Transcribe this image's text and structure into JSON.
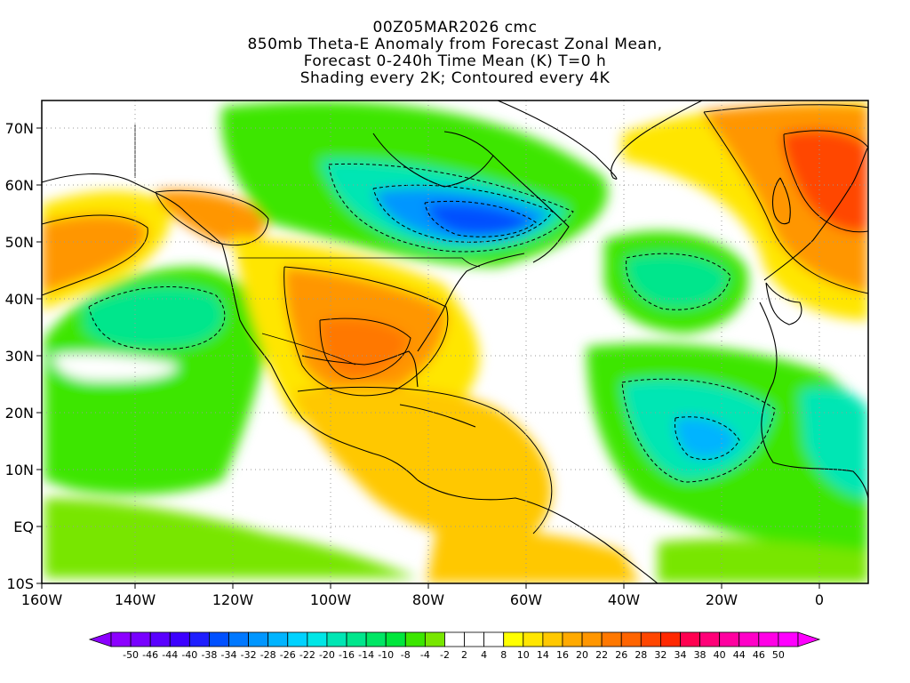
{
  "title": {
    "line1": "00Z05MAR2026 cmc",
    "line2": "850mb Theta-E Anomaly from Forecast Zonal Mean,",
    "line3": "Forecast 0-240h Time Mean (K) T=0 h",
    "line4": "Shading every 2K; Contoured every 4K"
  },
  "axes": {
    "lat_labels": [
      "70N",
      "60N",
      "50N",
      "40N",
      "30N",
      "20N",
      "10N",
      "EQ",
      "10S"
    ],
    "lon_labels": [
      "160W",
      "140W",
      "120W",
      "100W",
      "80W",
      "60W",
      "40W",
      "20W",
      "0"
    ]
  },
  "colorbar": {
    "labels": [
      "-50",
      "-46",
      "-44",
      "-40",
      "-38",
      "-34",
      "-32",
      "-28",
      "-26",
      "-22",
      "-20",
      "-16",
      "-14",
      "-10",
      "-8",
      "-4",
      "-2",
      "2",
      "4",
      "8",
      "10",
      "14",
      "16",
      "20",
      "22",
      "26",
      "28",
      "32",
      "34",
      "38",
      "40",
      "44",
      "46",
      "50"
    ],
    "colors": [
      "#8c00ff",
      "#7800ff",
      "#5a00ff",
      "#3c00ff",
      "#1e1eff",
      "#0050ff",
      "#0078ff",
      "#0096ff",
      "#00b4ff",
      "#00d2ff",
      "#00e6e6",
      "#00e6b4",
      "#00e68c",
      "#00e664",
      "#00e63c",
      "#3ce600",
      "#78e600",
      "#ffffff",
      "#ffffff",
      "#ffffff",
      "#ffff00",
      "#ffe600",
      "#ffc800",
      "#ffaa00",
      "#ff9600",
      "#ff7800",
      "#ff6400",
      "#ff4600",
      "#ff2800",
      "#ff0050",
      "#ff0078",
      "#ff00a0",
      "#ff00c8",
      "#ff00e6",
      "#ff00ff"
    ],
    "under_color": "#8c00ff",
    "over_color": "#ff00ff"
  },
  "palette": {
    "frame": "#000000",
    "ocean": "#ffffff",
    "grid": "#888888",
    "coast": "#000000"
  }
}
